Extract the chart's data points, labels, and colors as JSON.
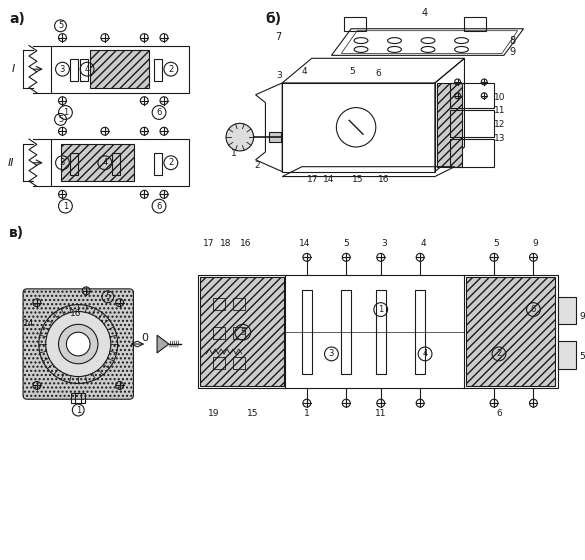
{
  "bg_color": "#ffffff",
  "line_color": "#1a1a1a",
  "label_a": "а)",
  "label_b": "б)",
  "label_v": "в)",
  "roman_I": "I",
  "roman_II": "II",
  "roman_O": "0",
  "figsize": [
    5.85,
    5.6
  ],
  "dpi": 100
}
